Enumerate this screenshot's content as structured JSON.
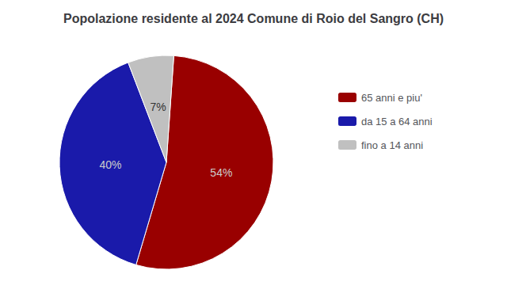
{
  "chart_data": {
    "type": "pie",
    "title": "Popolazione residente al 2024 Comune di Roio del Sangro (CH)",
    "categories": [
      "65 anni e piu'",
      "da 15 a 64 anni",
      "fino a 14 anni"
    ],
    "values": [
      54,
      40,
      7
    ],
    "value_labels": [
      "54%",
      "40%",
      "7%"
    ],
    "colors": [
      "#990000",
      "#1a1aaa",
      "#c0c0c0"
    ],
    "data_labels": true,
    "legend": "right"
  }
}
